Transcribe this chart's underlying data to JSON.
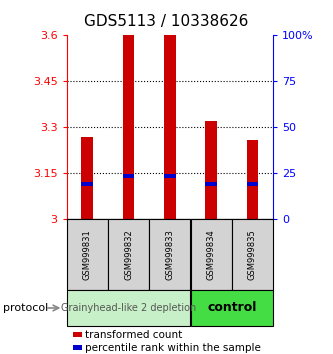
{
  "title": "GDS5113 / 10338626",
  "samples": [
    "GSM999831",
    "GSM999832",
    "GSM999833",
    "GSM999834",
    "GSM999835"
  ],
  "bar_heights": [
    3.27,
    3.6,
    3.6,
    3.32,
    3.26
  ],
  "bar_bottoms": [
    3.0,
    3.0,
    3.0,
    3.0,
    3.0
  ],
  "percentile_values": [
    3.115,
    3.142,
    3.142,
    3.115,
    3.115
  ],
  "ylim_left": [
    3.0,
    3.6
  ],
  "ylim_right": [
    0,
    100
  ],
  "yticks_left": [
    3.0,
    3.15,
    3.3,
    3.45,
    3.6
  ],
  "yticks_right": [
    0,
    25,
    50,
    75,
    100
  ],
  "yticklabels_left": [
    "3",
    "3.15",
    "3.3",
    "3.45",
    "3.6"
  ],
  "yticklabels_right": [
    "0",
    "25",
    "50",
    "75",
    "100%"
  ],
  "dotted_grid_values": [
    3.15,
    3.3,
    3.45
  ],
  "bar_color": "#cc0000",
  "percentile_color": "#0000cc",
  "group1_label": "Grainyhead-like 2 depletion",
  "group2_label": "control",
  "group1_color": "#c8f0c8",
  "group2_color": "#44dd44",
  "group1_indices": [
    0,
    1,
    2
  ],
  "group2_indices": [
    3,
    4
  ],
  "protocol_label": "protocol",
  "legend_red": "transformed count",
  "legend_blue": "percentile rank within the sample",
  "bar_width": 0.28,
  "title_fontsize": 11,
  "tick_fontsize": 8,
  "sample_fontsize": 6,
  "group_fontsize": 7,
  "legend_fontsize": 7.5
}
